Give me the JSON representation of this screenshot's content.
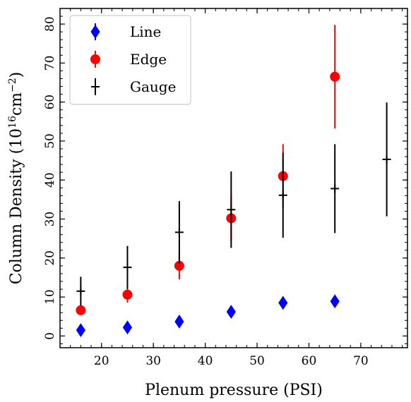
{
  "chart_data": {
    "type": "scatter",
    "xlabel": "Plenum pressure (PSI)",
    "ylabel_parts": {
      "base": "Column Density (10",
      "exp1": "16",
      "mid": "cm",
      "exp2": "−2",
      "end": ")"
    },
    "xlim": [
      12,
      79
    ],
    "ylim": [
      -3,
      84
    ],
    "xticks": [
      20,
      30,
      40,
      50,
      60,
      70
    ],
    "yticks": [
      0,
      10,
      20,
      30,
      40,
      50,
      60,
      70,
      80
    ],
    "x_minor_step": 2,
    "y_minor_step": 2,
    "grid": false,
    "legend_position": "upper-left",
    "series": [
      {
        "name": "Line",
        "color": "#0000ff",
        "marker": "diamond",
        "points": [
          {
            "x": 16,
            "y": 1.5,
            "yerr": 1.2
          },
          {
            "x": 25,
            "y": 2.2,
            "yerr": 1.2
          },
          {
            "x": 35,
            "y": 3.7,
            "yerr": 1.2
          },
          {
            "x": 45,
            "y": 6.2,
            "yerr": 1.2
          },
          {
            "x": 55,
            "y": 8.5,
            "yerr": 1.3
          },
          {
            "x": 65,
            "y": 8.9,
            "yerr": 1.3
          }
        ]
      },
      {
        "name": "Edge",
        "color": "#ff0000",
        "marker": "circle",
        "points": [
          {
            "x": 16,
            "y": 6.6,
            "yerr": 0.8
          },
          {
            "x": 25,
            "y": 10.6,
            "yerr": 2.0
          },
          {
            "x": 35,
            "y": 18.0,
            "yerr": 3.5
          },
          {
            "x": 45,
            "y": 30.2,
            "yerr": 5.8
          },
          {
            "x": 55,
            "y": 41.0,
            "yerr": 8.2
          },
          {
            "x": 65,
            "y": 66.5,
            "yerr": 13.3
          }
        ]
      },
      {
        "name": "Gauge",
        "color": "#000000",
        "marker": "plus",
        "points": [
          {
            "x": 16,
            "y": 11.5,
            "yerr": 3.7
          },
          {
            "x": 25,
            "y": 17.6,
            "yerr": 5.5
          },
          {
            "x": 35,
            "y": 26.6,
            "yerr": 8.0
          },
          {
            "x": 45,
            "y": 32.4,
            "yerr": 9.8
          },
          {
            "x": 55,
            "y": 36.1,
            "yerr": 10.9
          },
          {
            "x": 65,
            "y": 37.8,
            "yerr": 11.4
          },
          {
            "x": 75,
            "y": 45.3,
            "yerr": 14.6
          }
        ]
      }
    ]
  }
}
